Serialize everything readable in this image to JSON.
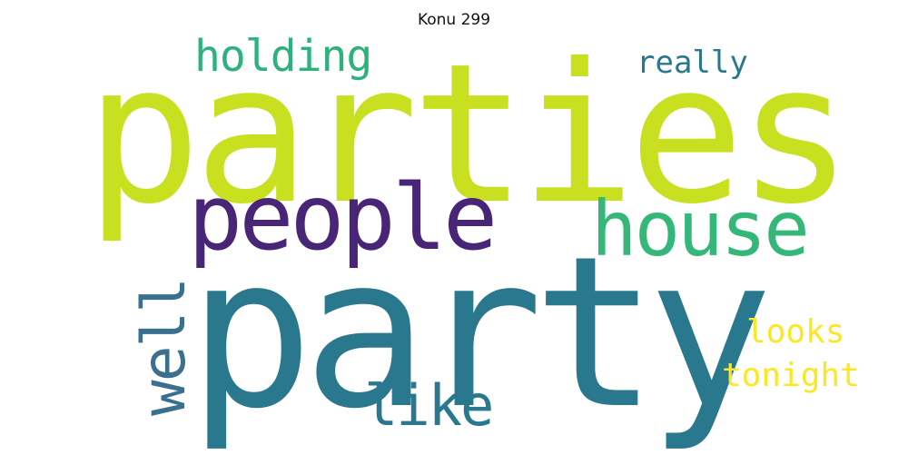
{
  "title": "Konu 299",
  "words": [
    {
      "id": "parties",
      "text": "parties",
      "color": "#c8e020"
    },
    {
      "id": "party",
      "text": "party",
      "color": "#2a788e"
    },
    {
      "id": "people",
      "text": "people",
      "color": "#482576"
    },
    {
      "id": "house",
      "text": "house",
      "color": "#35b779"
    },
    {
      "id": "holding",
      "text": "holding",
      "color": "#2db27d"
    },
    {
      "id": "really",
      "text": "really",
      "color": "#2a788e"
    },
    {
      "id": "like",
      "text": "like",
      "color": "#2a788e"
    },
    {
      "id": "well",
      "text": "well",
      "color": "#3b6f8f"
    },
    {
      "id": "looks",
      "text": "looks",
      "color": "#fde725"
    },
    {
      "id": "tonight",
      "text": "tonight",
      "color": "#fde725"
    }
  ]
}
